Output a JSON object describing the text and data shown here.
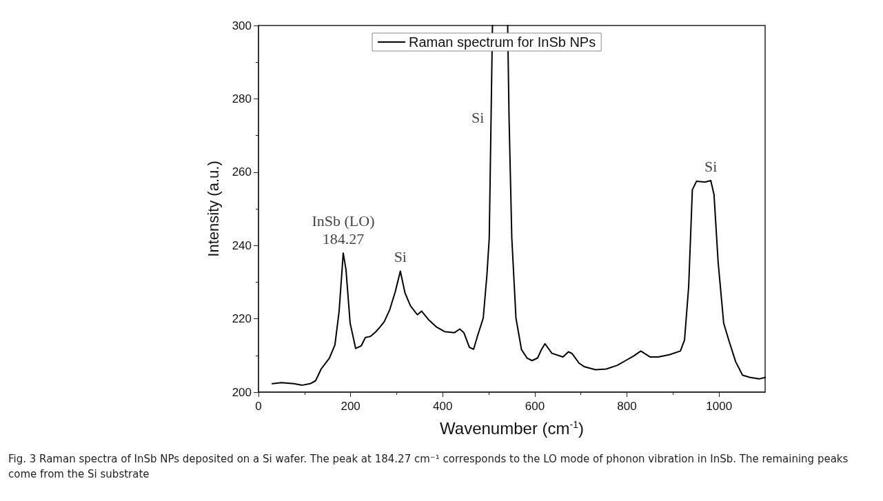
{
  "chart_data": {
    "type": "line",
    "xlabel": "Wavenumber (cm$^{-1}$)",
    "ylabel": "Intensity (a.u.)",
    "xlim": [
      0,
      1100
    ],
    "xticks": [
      0,
      200,
      400,
      600,
      800,
      1000
    ],
    "ylim": [
      200,
      300
    ],
    "yticks": [
      200,
      220,
      240,
      260,
      280,
      300
    ],
    "grid": false,
    "legend": "top",
    "marker": "none",
    "line_style": "solid",
    "annotations": [
      {
        "text": "InSb (LO)\n184.27",
        "x": 184,
        "y": 237.9
      },
      {
        "text": "Si",
        "x": 308,
        "y": 233
      },
      {
        "text": "Si",
        "x": 505,
        "y": 275
      },
      {
        "text": "Si",
        "x": 982,
        "y": 257.7
      },
      "Fig. 3 Raman spectra of InSb NPs deposited on a Si wafer. The peak at 184.27 cm⁻¹ corresponds to the LO mode of phonon vibration in InSb. The remaining peaks come from the Si substrate"
    ],
    "series": [
      {
        "name": "Raman spectrum for InSb NPs",
        "color": "#000000",
        "x": [
          30,
          50,
          77,
          95,
          112,
          124,
          136,
          154,
          166,
          175,
          184,
          190,
          199,
          211,
          223,
          232,
          243,
          255,
          264,
          273,
          285,
          297,
          308,
          318,
          330,
          345,
          354,
          369,
          386,
          404,
          425,
          437,
          446,
          458,
          467,
          476,
          488,
          496,
          501,
          505,
          508,
          525,
          541,
          544,
          550,
          559,
          571,
          583,
          594,
          606,
          614,
          622,
          637,
          661,
          673,
          681,
          696,
          708,
          732,
          755,
          779,
          797,
          815,
          830,
          850,
          868,
          892,
          916,
          925,
          934,
          942,
          951,
          969,
          982,
          989,
          998,
          1010,
          1021,
          1036,
          1051,
          1068,
          1087,
          1100
        ],
        "values": [
          202.3,
          202.6,
          202.3,
          201.9,
          202.3,
          203.1,
          206.3,
          209.3,
          212.9,
          222,
          237.9,
          233.4,
          218.8,
          211.9,
          212.6,
          214.9,
          215.2,
          216.5,
          217.8,
          219.2,
          222.5,
          227.4,
          233,
          227.1,
          223.5,
          221.1,
          222.1,
          219.8,
          217.8,
          216.5,
          216.2,
          217.2,
          216.2,
          212.2,
          211.7,
          215.5,
          220.2,
          232,
          242,
          275,
          300,
          null,
          300,
          275,
          242,
          220.2,
          211.6,
          209.3,
          208.6,
          209.3,
          211.5,
          213.2,
          210.6,
          209.6,
          211,
          210.5,
          207.9,
          206.9,
          206.1,
          206.3,
          207.3,
          208.6,
          209.9,
          211.2,
          209.6,
          209.6,
          210.2,
          211.2,
          214.2,
          228.8,
          255.2,
          257.5,
          257.3,
          257.7,
          253.9,
          235.4,
          218.8,
          214.2,
          208.3,
          204.6,
          204,
          203.6,
          204
        ]
      }
    ]
  }
}
